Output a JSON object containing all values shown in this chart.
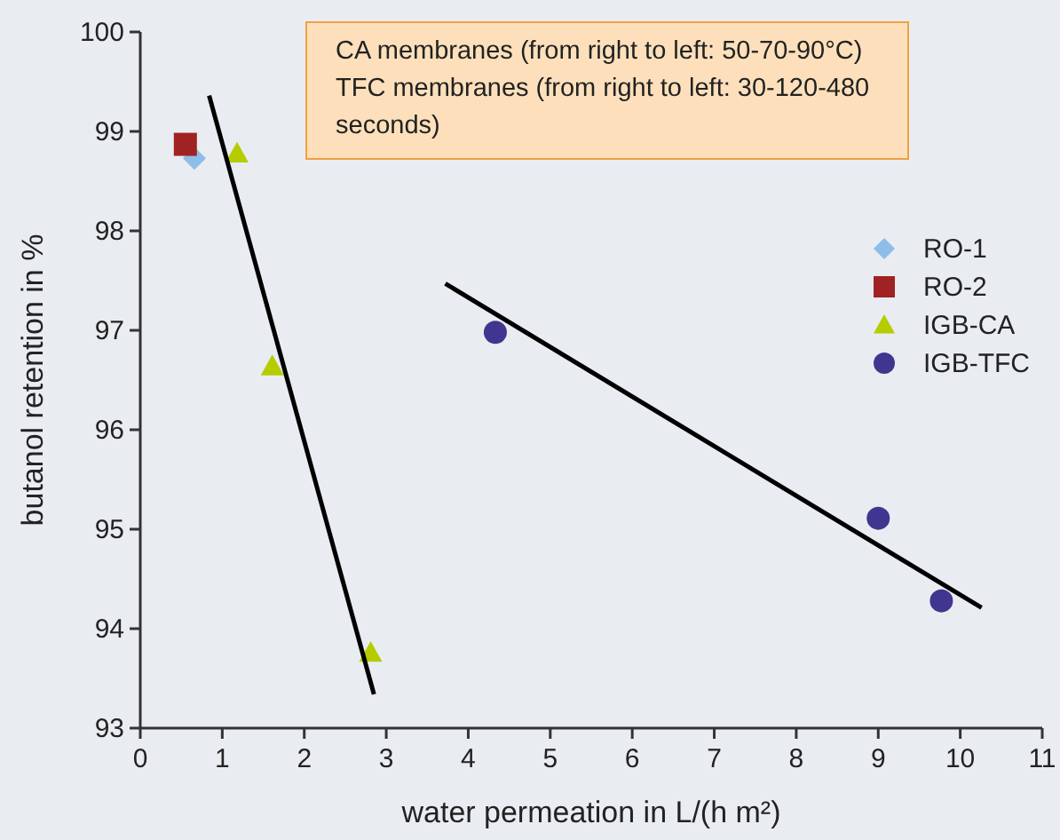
{
  "chart_data": {
    "type": "scatter",
    "xlabel": "water permeation in L/(h m²)",
    "ylabel": "butanol retention in %",
    "annotations": [
      "CA membranes (from right to left: 50-70-90°C)",
      "TFC membranes (from right to left: 30-120-480 seconds)"
    ],
    "series": [
      {
        "name": "RO-1",
        "color": "#8dbde8",
        "marker": "diamond",
        "x": [
          0.66
        ],
        "values": [
          98.73
        ]
      },
      {
        "name": "RO-2",
        "color": "#a12222",
        "marker": "square",
        "x": [
          0.55
        ],
        "values": [
          98.87
        ]
      },
      {
        "name": "IGB-CA",
        "color": "#b5cc00",
        "marker": "triangle",
        "x": [
          1.18,
          1.61,
          2.81
        ],
        "values": [
          98.78,
          96.64,
          93.76
        ]
      },
      {
        "name": "IGB-TFC",
        "color": "#41368f",
        "marker": "circle",
        "x": [
          4.33,
          9.0,
          9.77
        ],
        "values": [
          96.98,
          95.11,
          94.28
        ]
      },
      {
        "type": "line",
        "color": "#000000",
        "marker": "none",
        "x": [
          0.84,
          2.85
        ],
        "values": [
          99.36,
          93.34
        ]
      },
      {
        "type": "line",
        "color": "#000000",
        "marker": "none",
        "x": [
          3.72,
          10.26
        ],
        "values": [
          97.47,
          94.21
        ]
      }
    ],
    "xlim": [
      0,
      11
    ],
    "xticks": [
      0,
      1,
      2,
      3,
      4,
      5,
      6,
      7,
      8,
      9,
      10,
      11
    ],
    "ylim": [
      93,
      100
    ],
    "yticks": [
      93,
      94,
      95,
      96,
      97,
      98,
      99,
      100
    ],
    "grid": false,
    "legend": "top right"
  }
}
